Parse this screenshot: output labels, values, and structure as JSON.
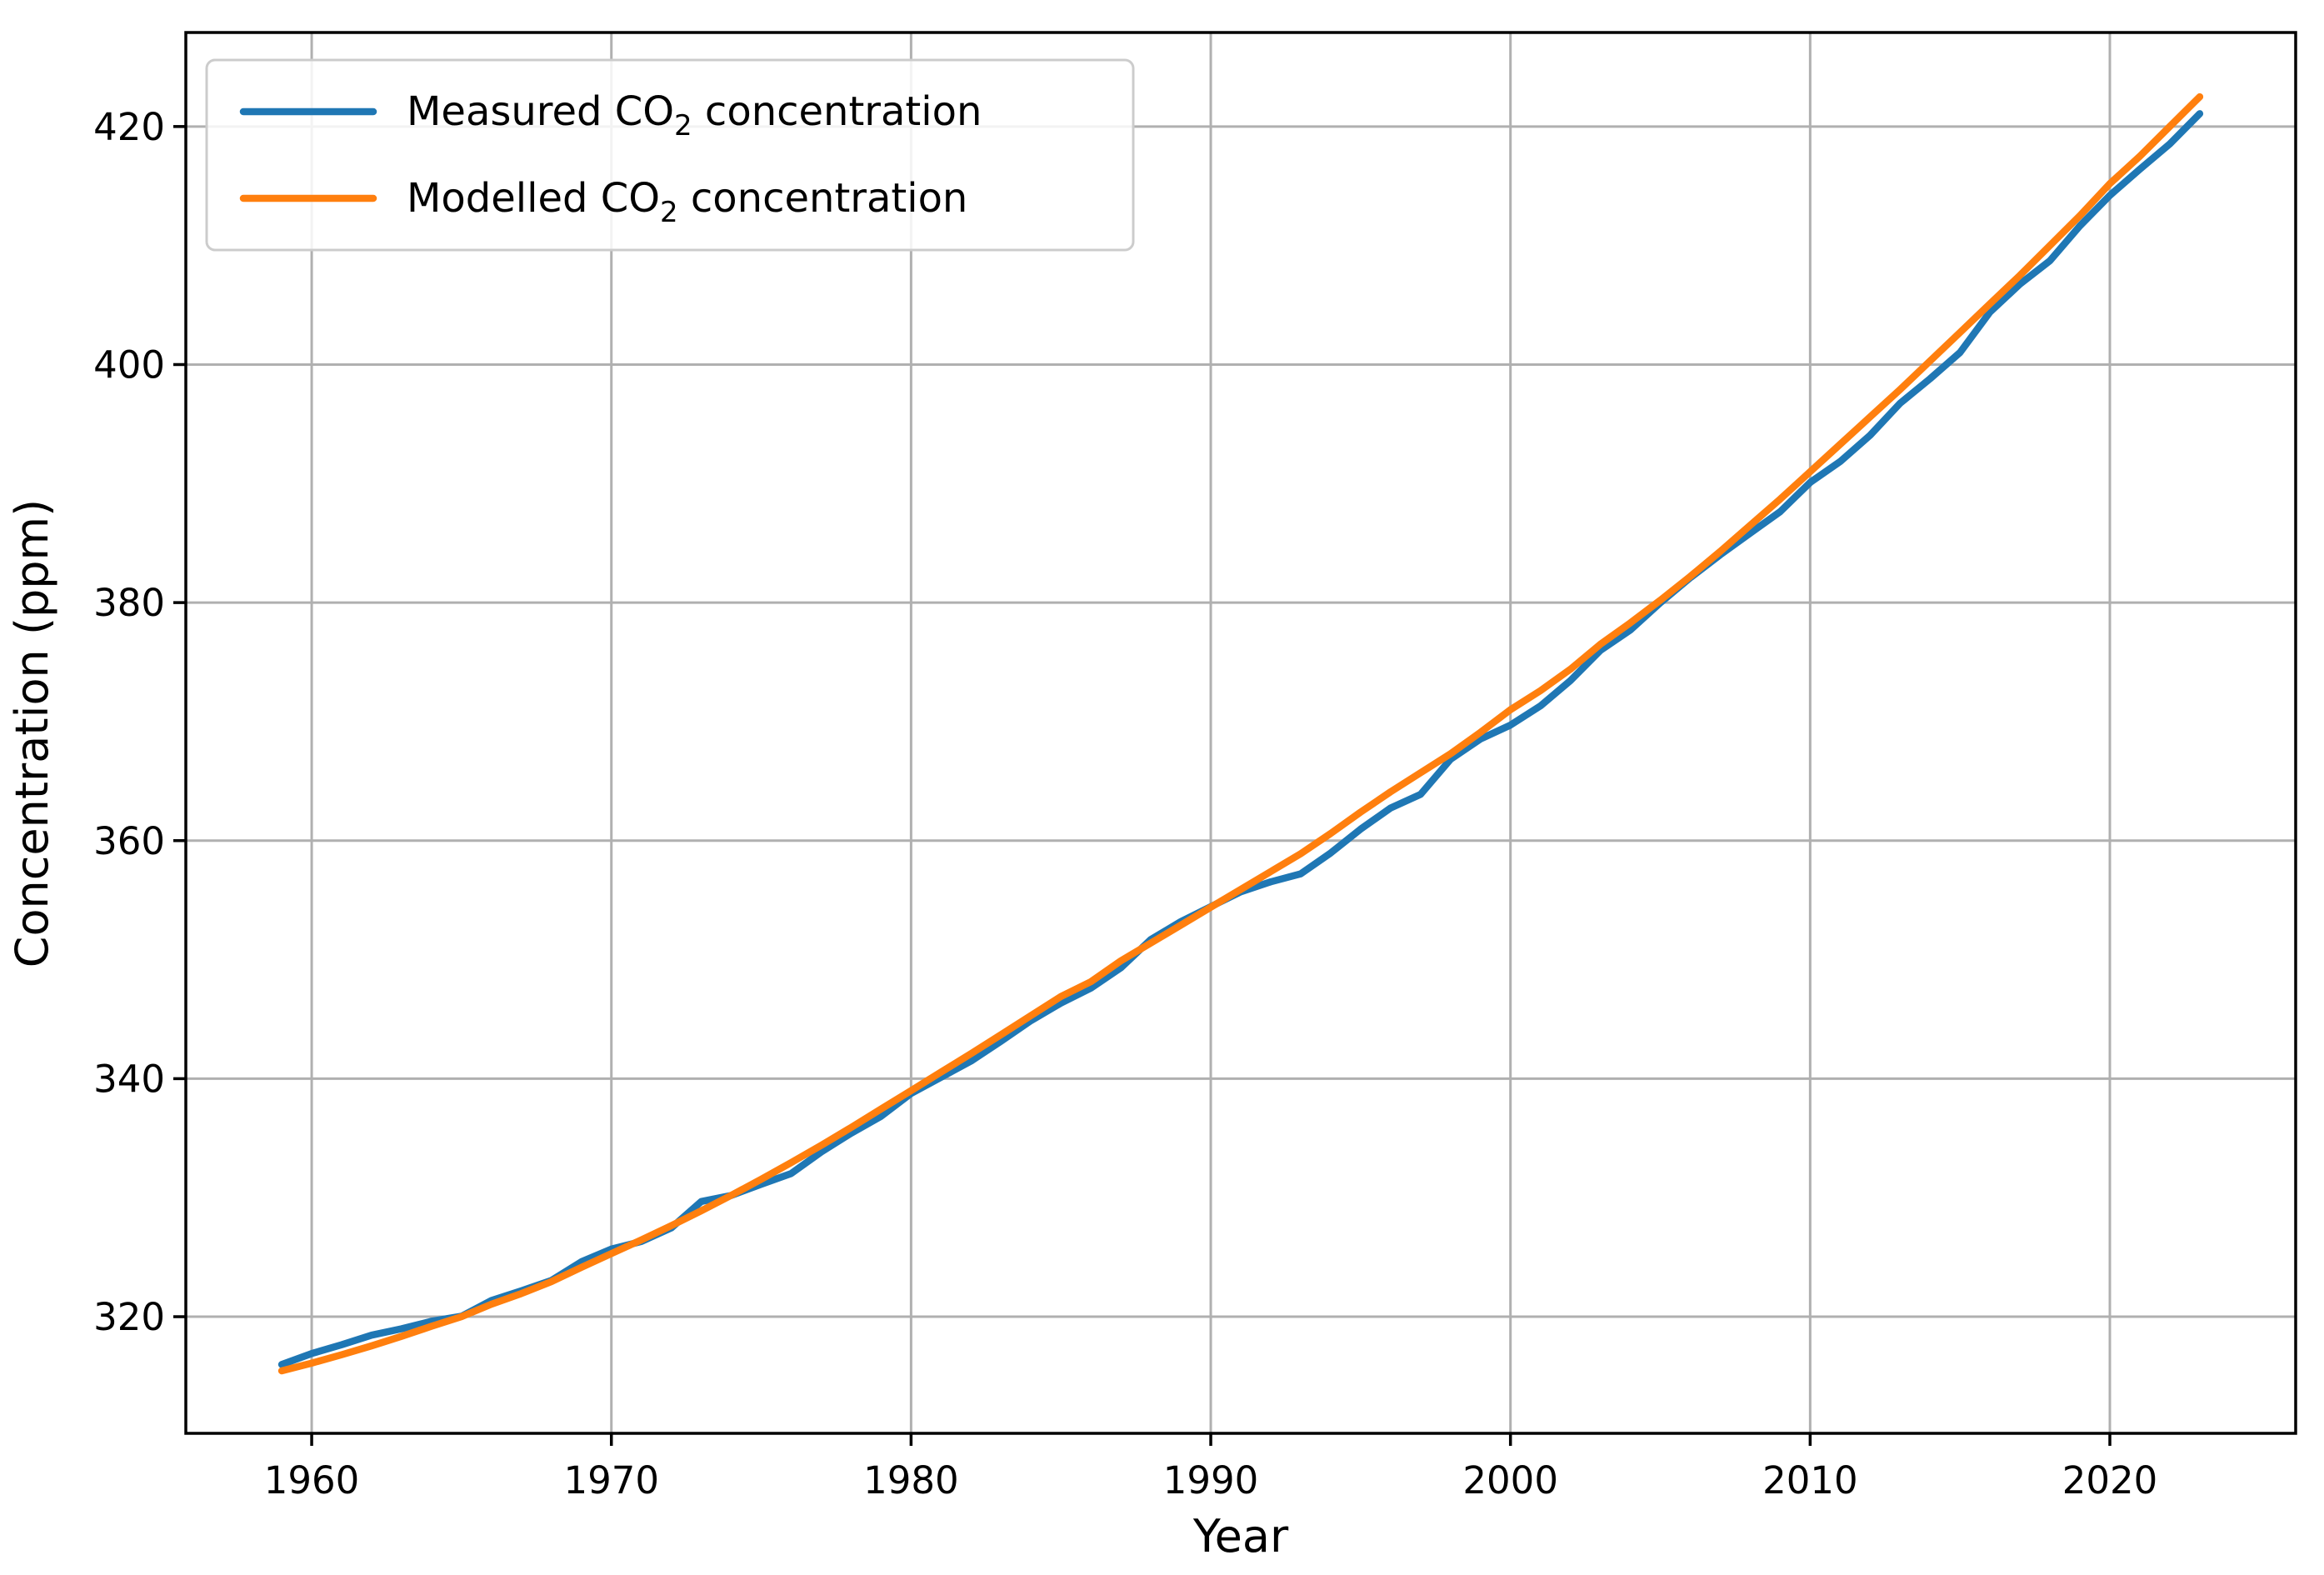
{
  "chart_data": {
    "type": "line",
    "title": "",
    "xlabel": "Year",
    "ylabel": "Concentration (ppm)",
    "xlim": [
      1955.8,
      2026.2
    ],
    "ylim": [
      310.2,
      427.9
    ],
    "x_ticks": [
      1960,
      1970,
      1980,
      1990,
      2000,
      2010,
      2020
    ],
    "y_ticks": [
      320,
      340,
      360,
      380,
      400,
      420
    ],
    "grid": true,
    "grid_color": "#b0b0b0",
    "legend_position": "upper left",
    "x": [
      1959,
      1960,
      1961,
      1962,
      1963,
      1964,
      1965,
      1966,
      1967,
      1968,
      1969,
      1970,
      1971,
      1972,
      1973,
      1974,
      1975,
      1976,
      1977,
      1978,
      1979,
      1980,
      1981,
      1982,
      1983,
      1984,
      1985,
      1986,
      1987,
      1988,
      1989,
      1990,
      1991,
      1992,
      1993,
      1994,
      1995,
      1996,
      1997,
      1998,
      1999,
      2000,
      2001,
      2002,
      2003,
      2004,
      2005,
      2006,
      2007,
      2008,
      2009,
      2010,
      2011,
      2012,
      2013,
      2014,
      2015,
      2016,
      2017,
      2018,
      2019,
      2020,
      2021,
      2022,
      2023
    ],
    "series": [
      {
        "name": "Measured CO₂ concentration",
        "color": "#1f77b4",
        "values": [
          315.98,
          316.91,
          317.64,
          318.45,
          318.99,
          319.62,
          320.04,
          321.37,
          322.18,
          323.05,
          324.62,
          325.68,
          326.32,
          327.46,
          329.68,
          330.19,
          331.13,
          332.03,
          333.84,
          335.41,
          336.84,
          338.76,
          340.12,
          341.48,
          343.15,
          344.87,
          346.35,
          347.61,
          349.31,
          351.69,
          353.2,
          354.45,
          355.7,
          356.54,
          357.21,
          358.96,
          360.97,
          362.74,
          363.88,
          366.84,
          368.54,
          369.71,
          371.32,
          373.45,
          375.98,
          377.7,
          379.98,
          382.09,
          384.02,
          385.83,
          387.64,
          390.1,
          391.85,
          394.06,
          396.74,
          398.81,
          401.01,
          404.41,
          406.76,
          408.72,
          411.65,
          414.21,
          416.41,
          418.53,
          421.08
        ]
      },
      {
        "name": "Modelled CO₂ concentration",
        "color": "#ff7f0e",
        "values": [
          315.45,
          316.1,
          316.8,
          317.55,
          318.35,
          319.2,
          320.0,
          321.05,
          321.95,
          322.95,
          324.15,
          325.3,
          326.45,
          327.65,
          328.9,
          330.2,
          331.55,
          332.95,
          334.4,
          335.9,
          337.45,
          339.0,
          340.55,
          342.1,
          343.7,
          345.3,
          346.9,
          348.15,
          349.9,
          351.4,
          352.9,
          354.4,
          355.9,
          357.4,
          358.9,
          360.6,
          362.4,
          364.1,
          365.7,
          367.3,
          369.1,
          371.0,
          372.6,
          374.4,
          376.5,
          378.3,
          380.2,
          382.2,
          384.3,
          386.5,
          388.7,
          391.0,
          393.3,
          395.6,
          397.9,
          400.3,
          402.7,
          405.1,
          407.5,
          410.0,
          412.5,
          415.2,
          417.5,
          420.0,
          422.5
        ]
      }
    ]
  }
}
